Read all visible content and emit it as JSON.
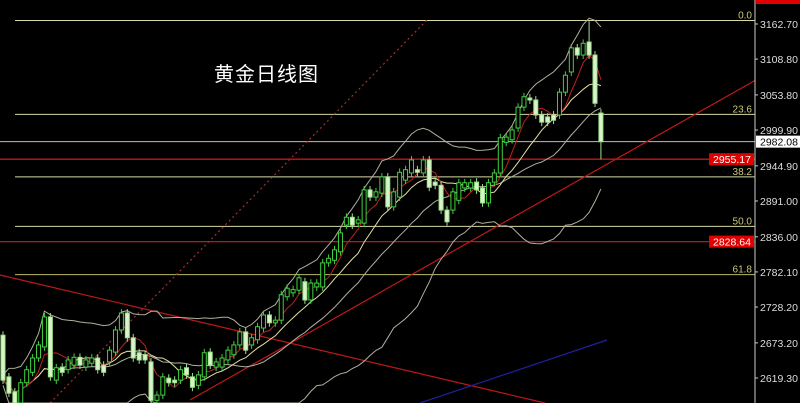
{
  "chart_data": {
    "type": "candlestick",
    "title": "黄金日线图",
    "ylim": [
      2595,
      3180
    ],
    "y_ticks": [
      "3162.70",
      "3108.80",
      "3053.80",
      "2999.90",
      "2944.90",
      "2891.00",
      "2836.00",
      "2782.10",
      "2728.20",
      "2673.20",
      "2619.30"
    ],
    "price_labels": {
      "current": {
        "text": "2982.08",
        "value": 2982.08
      },
      "support_1": {
        "text": "2955.17",
        "value": 2955.17
      },
      "support_2": {
        "text": "2828.64",
        "value": 2828.64
      }
    },
    "fibonacci": [
      {
        "label": "0.0",
        "value": 3168
      },
      {
        "label": "23.6",
        "value": 3024
      },
      {
        "label": "38.2",
        "value": 2928
      },
      {
        "label": "50.0",
        "value": 2852
      },
      {
        "label": "61.8",
        "value": 2778
      }
    ],
    "candles_open_close": [
      [
        2685,
        2616
      ],
      [
        2621,
        2596
      ],
      [
        2598,
        2581
      ],
      [
        2581,
        2612
      ],
      [
        2612,
        2632
      ],
      [
        2628,
        2650
      ],
      [
        2650,
        2670
      ],
      [
        2667,
        2713
      ],
      [
        2713,
        2621
      ],
      [
        2616,
        2635
      ],
      [
        2636,
        2628
      ],
      [
        2632,
        2647
      ],
      [
        2639,
        2651
      ],
      [
        2651,
        2639
      ],
      [
        2636,
        2647
      ],
      [
        2642,
        2650
      ],
      [
        2650,
        2632
      ],
      [
        2639,
        2628
      ],
      [
        2644,
        2662
      ],
      [
        2659,
        2693
      ],
      [
        2693,
        2719
      ],
      [
        2719,
        2681
      ],
      [
        2681,
        2650
      ],
      [
        2658,
        2647
      ],
      [
        2655,
        2647
      ],
      [
        2644,
        2585
      ],
      [
        2585,
        2593
      ],
      [
        2593,
        2621
      ],
      [
        2619,
        2612
      ],
      [
        2616,
        2612
      ],
      [
        2616,
        2632
      ],
      [
        2635,
        2624
      ],
      [
        2621,
        2605
      ],
      [
        2608,
        2624
      ],
      [
        2621,
        2658
      ],
      [
        2659,
        2639
      ],
      [
        2636,
        2644
      ],
      [
        2636,
        2650
      ],
      [
        2647,
        2662
      ],
      [
        2655,
        2670
      ],
      [
        2670,
        2690
      ],
      [
        2690,
        2662
      ],
      [
        2670,
        2681
      ],
      [
        2678,
        2698
      ],
      [
        2696,
        2716
      ],
      [
        2716,
        2704
      ],
      [
        2704,
        2708
      ],
      [
        2708,
        2747
      ],
      [
        2744,
        2757
      ],
      [
        2750,
        2755
      ],
      [
        2754,
        2773
      ],
      [
        2767,
        2739
      ],
      [
        2739,
        2765
      ],
      [
        2759,
        2765
      ],
      [
        2759,
        2796
      ],
      [
        2796,
        2803
      ],
      [
        2800,
        2816
      ],
      [
        2813,
        2842
      ],
      [
        2854,
        2866
      ],
      [
        2866,
        2854
      ],
      [
        2857,
        2862
      ],
      [
        2857,
        2908
      ],
      [
        2908,
        2897
      ],
      [
        2897,
        2905
      ],
      [
        2903,
        2928
      ],
      [
        2928,
        2882
      ],
      [
        2882,
        2905
      ],
      [
        2897,
        2935
      ],
      [
        2923,
        2939
      ],
      [
        2934,
        2954
      ],
      [
        2939,
        2935
      ],
      [
        2934,
        2954
      ],
      [
        2954,
        2912
      ],
      [
        2920,
        2915
      ],
      [
        2915,
        2877
      ],
      [
        2877,
        2859
      ],
      [
        2877,
        2905
      ],
      [
        2892,
        2919
      ],
      [
        2911,
        2919
      ],
      [
        2911,
        2919
      ],
      [
        2920,
        2908
      ],
      [
        2911,
        2888
      ],
      [
        2888,
        2919
      ],
      [
        2920,
        2934
      ],
      [
        2934,
        2988
      ],
      [
        2981,
        2989
      ],
      [
        2985,
        3000
      ],
      [
        3003,
        3035
      ],
      [
        3035,
        3051
      ],
      [
        3049,
        3046
      ],
      [
        3046,
        3023
      ],
      [
        3023,
        3012
      ],
      [
        3020,
        3012
      ],
      [
        3023,
        3015
      ],
      [
        3023,
        3058
      ],
      [
        3058,
        3084
      ],
      [
        3089,
        3126
      ],
      [
        3126,
        3115
      ],
      [
        3115,
        3133
      ],
      [
        3135,
        3115
      ],
      [
        3115,
        3041
      ],
      [
        3026,
        2982
      ]
    ],
    "notable_extremes": {
      "high": 3167,
      "last_low": 2955
    },
    "colors": {
      "bull_outline": "#3fd23f",
      "bear_fill": "#d8f5c8",
      "ma_fast": "#c02020",
      "ma_slow": "#e8e0a0",
      "bands": "#b0b0a0",
      "trendline": "#c01818",
      "fib": "#d8d8a8",
      "price_line": "#bbbbbb",
      "blue_line": "#2020a0"
    }
  }
}
